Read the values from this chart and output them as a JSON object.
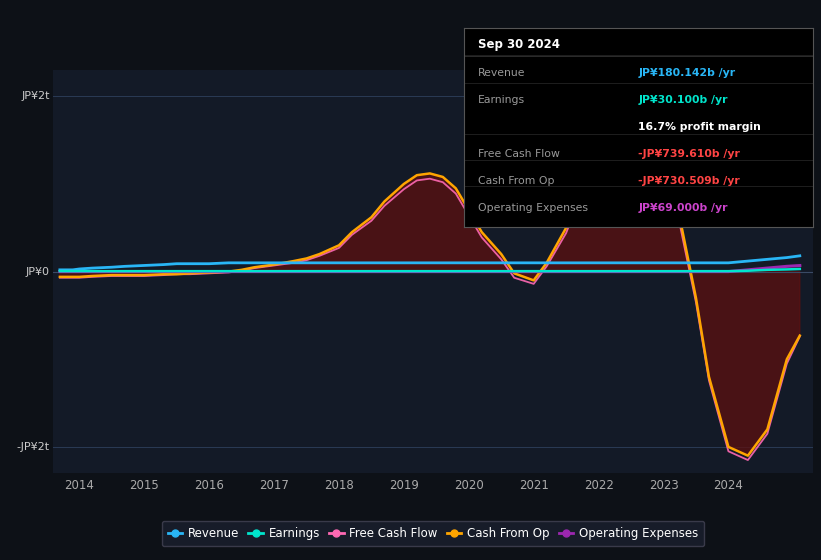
{
  "background_color": "#0d1117",
  "plot_bg_color": "#131a27",
  "ylabel_top": "JP¥2t",
  "ylabel_bottom": "-JP¥2t",
  "ylabel_zero": "JP¥0",
  "ylim": [
    -2.3,
    2.3
  ],
  "xlim": [
    2013.6,
    2025.3
  ],
  "xticks": [
    2014,
    2015,
    2016,
    2017,
    2018,
    2019,
    2020,
    2021,
    2022,
    2023,
    2024
  ],
  "colors": {
    "revenue": "#29b6f6",
    "earnings": "#00e5cc",
    "free_cash_flow": "#ff69b4",
    "cash_from_op": "#ffa500",
    "operating_expenses": "#9c27b0",
    "fill_dark_red": "#5c1010"
  },
  "legend": [
    {
      "label": "Revenue",
      "color": "#29b6f6",
      "marker": "o"
    },
    {
      "label": "Earnings",
      "color": "#00e5cc",
      "marker": "o"
    },
    {
      "label": "Free Cash Flow",
      "color": "#ff69b4",
      "marker": "o"
    },
    {
      "label": "Cash From Op",
      "color": "#ffa500",
      "marker": "o"
    },
    {
      "label": "Operating Expenses",
      "color": "#9c27b0",
      "marker": "o"
    }
  ],
  "tooltip": {
    "date": "Sep 30 2024",
    "revenue_label": "Revenue",
    "revenue_value": "JP¥180.142b /yr",
    "revenue_color": "#29b6f6",
    "earnings_label": "Earnings",
    "earnings_value": "JP¥30.100b /yr",
    "earnings_color": "#00e5cc",
    "profit_margin": "16.7% profit margin",
    "fcf_label": "Free Cash Flow",
    "fcf_value": "-JP¥739.610b /yr",
    "fcf_color": "#ff4444",
    "cfop_label": "Cash From Op",
    "cfop_value": "-JP¥730.509b /yr",
    "cfop_color": "#ff4444",
    "opex_label": "Operating Expenses",
    "opex_value": "JP¥69.000b /yr",
    "opex_color": "#cc44cc"
  },
  "years": [
    2013.7,
    2013.9,
    2014.0,
    2014.2,
    2014.5,
    2014.7,
    2015.0,
    2015.3,
    2015.5,
    2015.7,
    2016.0,
    2016.3,
    2016.5,
    2016.7,
    2017.0,
    2017.3,
    2017.5,
    2017.7,
    2018.0,
    2018.2,
    2018.5,
    2018.7,
    2019.0,
    2019.2,
    2019.4,
    2019.6,
    2019.8,
    2020.0,
    2020.2,
    2020.5,
    2020.7,
    2021.0,
    2021.2,
    2021.5,
    2021.7,
    2022.0,
    2022.2,
    2022.5,
    2022.7,
    2023.0,
    2023.2,
    2023.5,
    2023.7,
    2024.0,
    2024.3,
    2024.6,
    2024.9,
    2025.1
  ],
  "revenue": [
    0.02,
    0.02,
    0.03,
    0.04,
    0.05,
    0.06,
    0.07,
    0.08,
    0.09,
    0.09,
    0.09,
    0.1,
    0.1,
    0.1,
    0.1,
    0.1,
    0.1,
    0.1,
    0.1,
    0.1,
    0.1,
    0.1,
    0.1,
    0.1,
    0.1,
    0.1,
    0.1,
    0.1,
    0.1,
    0.1,
    0.1,
    0.1,
    0.1,
    0.1,
    0.1,
    0.1,
    0.1,
    0.1,
    0.1,
    0.1,
    0.1,
    0.1,
    0.1,
    0.1,
    0.12,
    0.14,
    0.16,
    0.18
  ],
  "earnings": [
    0.005,
    0.005,
    0.005,
    0.005,
    0.005,
    0.005,
    0.005,
    0.005,
    0.005,
    0.005,
    0.005,
    0.005,
    0.005,
    0.005,
    0.005,
    0.005,
    0.005,
    0.005,
    0.005,
    0.005,
    0.005,
    0.005,
    0.005,
    0.005,
    0.005,
    0.005,
    0.005,
    0.005,
    0.005,
    0.005,
    0.005,
    0.005,
    0.005,
    0.005,
    0.005,
    0.005,
    0.005,
    0.005,
    0.005,
    0.005,
    0.005,
    0.005,
    0.005,
    0.005,
    0.01,
    0.02,
    0.025,
    0.03
  ],
  "cash_from_op": [
    -0.06,
    -0.06,
    -0.06,
    -0.05,
    -0.04,
    -0.04,
    -0.04,
    -0.03,
    -0.03,
    -0.02,
    -0.01,
    0.0,
    0.02,
    0.05,
    0.08,
    0.12,
    0.15,
    0.2,
    0.3,
    0.45,
    0.62,
    0.8,
    1.0,
    1.1,
    1.12,
    1.08,
    0.95,
    0.7,
    0.45,
    0.2,
    -0.02,
    -0.1,
    0.1,
    0.5,
    0.9,
    1.2,
    1.45,
    1.6,
    1.55,
    1.35,
    0.8,
    -0.3,
    -1.2,
    -2.0,
    -2.1,
    -1.8,
    -1.0,
    -0.73
  ],
  "free_cash_flow": [
    -0.07,
    -0.07,
    -0.07,
    -0.06,
    -0.05,
    -0.05,
    -0.05,
    -0.04,
    -0.03,
    -0.03,
    -0.02,
    -0.01,
    0.01,
    0.04,
    0.07,
    0.1,
    0.13,
    0.18,
    0.27,
    0.42,
    0.58,
    0.75,
    0.94,
    1.04,
    1.06,
    1.02,
    0.89,
    0.64,
    0.39,
    0.14,
    -0.07,
    -0.14,
    0.06,
    0.44,
    0.82,
    1.12,
    1.36,
    1.5,
    1.45,
    1.25,
    0.72,
    -0.35,
    -1.24,
    -2.05,
    -2.15,
    -1.85,
    -1.05,
    -0.74
  ],
  "operating_expenses": [
    0.0,
    0.0,
    0.0,
    0.0,
    0.0,
    0.0,
    0.0,
    0.0,
    0.0,
    0.0,
    0.0,
    0.0,
    0.0,
    0.0,
    0.0,
    0.0,
    0.0,
    0.0,
    0.0,
    0.0,
    0.0,
    0.0,
    0.0,
    0.0,
    0.0,
    0.0,
    0.0,
    0.0,
    0.0,
    0.0,
    0.0,
    0.0,
    0.0,
    0.0,
    0.0,
    0.0,
    0.0,
    0.0,
    0.0,
    0.0,
    0.0,
    0.0,
    0.0,
    0.0,
    0.02,
    0.04,
    0.06,
    0.069
  ]
}
